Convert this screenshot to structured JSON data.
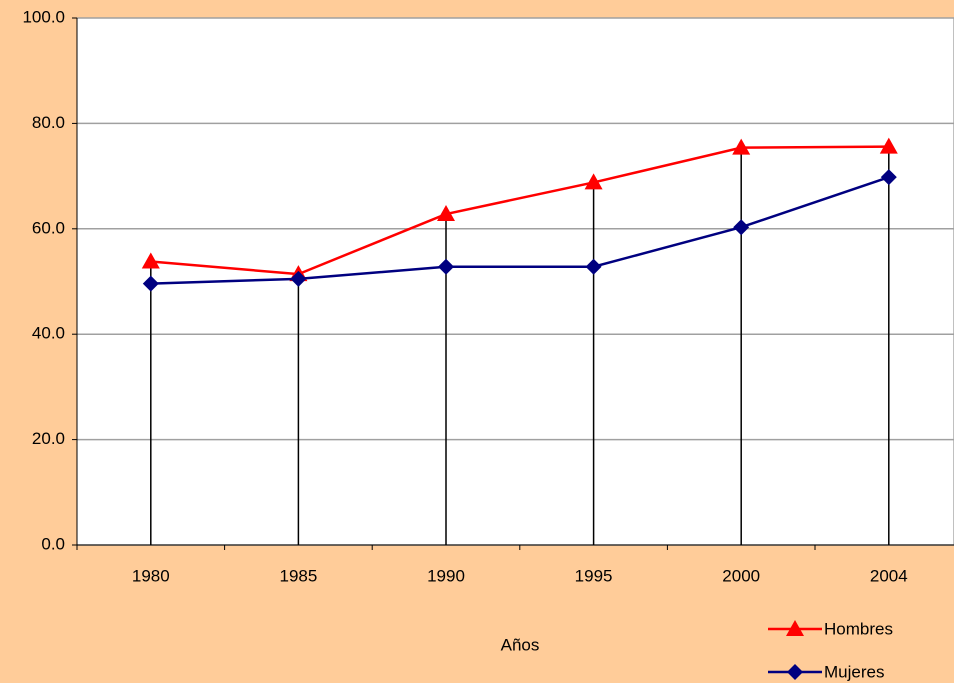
{
  "chart_data": {
    "type": "line",
    "x_label": "Años",
    "categories": [
      "1980",
      "1985",
      "1990",
      "1995",
      "2000",
      "2004"
    ],
    "series": [
      {
        "name": "Hombres",
        "color": "#ff0000",
        "marker": "triangle",
        "values": [
          53.8,
          51.4,
          62.8,
          68.8,
          75.4,
          75.6
        ]
      },
      {
        "name": "Mujeres",
        "color": "#000080",
        "marker": "diamond",
        "values": [
          49.6,
          50.5,
          52.8,
          52.8,
          60.3,
          69.8
        ]
      }
    ],
    "ylim": [
      0,
      100
    ],
    "yticks": [
      {
        "value": 0,
        "label": "0.0"
      },
      {
        "value": 20,
        "label": "20.0"
      },
      {
        "value": 40,
        "label": "40.0"
      },
      {
        "value": 60,
        "label": "60.0"
      },
      {
        "value": 80,
        "label": "80.0"
      },
      {
        "value": 100,
        "label": "100.0"
      }
    ],
    "grid": true,
    "drop_lines": true,
    "legend": "bottom-right"
  }
}
